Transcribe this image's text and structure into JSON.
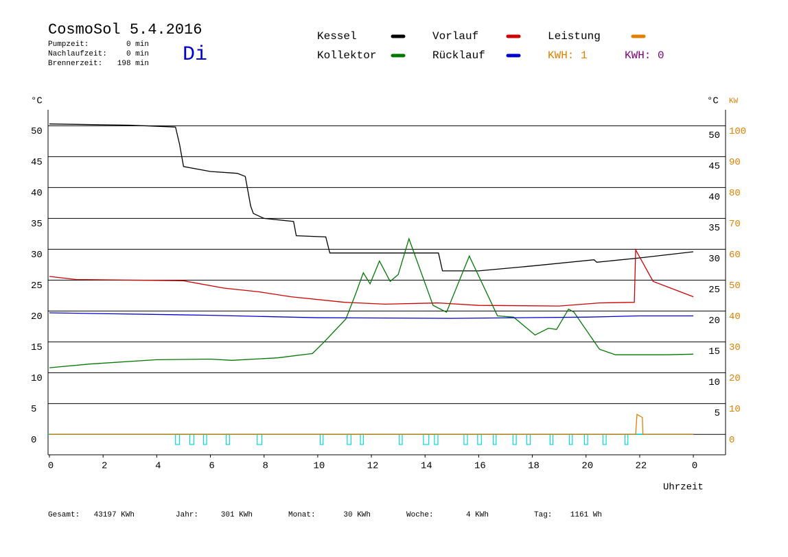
{
  "chart_data": {
    "type": "line",
    "title": "CosmoSol 5.4.2016",
    "day": "Di",
    "stats": [
      {
        "label": "Pumpzeit:",
        "value": "0 min"
      },
      {
        "label": "Nachlaufzeit:",
        "value": "0 min"
      },
      {
        "label": "Brennerzeit:",
        "value": "198 min"
      }
    ],
    "y_label": "°C",
    "y2_label_c": "°C",
    "y2_label": "KW",
    "x_label": "Uhrzeit",
    "xlim": [
      0,
      25.2
    ],
    "xticks": [
      0,
      2,
      4,
      6,
      8,
      10,
      12,
      14,
      16,
      18,
      20,
      22,
      {
        "value": 24,
        "label": "0"
      }
    ],
    "ylim": [
      -3.3,
      52.6
    ],
    "yticks": [
      0,
      5,
      10,
      15,
      20,
      25,
      30,
      35,
      40,
      45,
      50
    ],
    "yticks_right": [
      5,
      10,
      15,
      20,
      25,
      30,
      35,
      40,
      45,
      50
    ],
    "y2lim": [
      -6.6,
      105.2
    ],
    "y2ticks": [
      0,
      10,
      20,
      30,
      40,
      50,
      60,
      70,
      80,
      90,
      100
    ],
    "y2_color": "#e08000",
    "grid": true,
    "series": [
      {
        "name": "Kessel",
        "color": "#000000",
        "x": [
          0,
          3,
          4.7,
          4.85,
          5,
          6,
          7,
          7.3,
          7.5,
          7.6,
          8,
          9.1,
          9.2,
          10.3,
          10.45,
          14.5,
          14.65,
          16,
          18,
          20.3,
          20.4,
          22,
          24
        ],
        "values": [
          50.3,
          50.1,
          49.8,
          47,
          43.4,
          42.6,
          42.3,
          41.8,
          37,
          35.8,
          35,
          34.5,
          32.2,
          32,
          29.4,
          29.4,
          26.5,
          26.5,
          27.3,
          28.3,
          27.9,
          28.6,
          29.6
        ]
      },
      {
        "name": "Vorlauf",
        "color": "#cc0000",
        "x": [
          0,
          1,
          5,
          6.5,
          7.8,
          9,
          11,
          12.5,
          14.5,
          16,
          19,
          20.5,
          21.8,
          21.85,
          22.5,
          24
        ],
        "values": [
          25.6,
          25.1,
          24.9,
          23.7,
          23.1,
          22.3,
          21.4,
          21.1,
          21.3,
          20.9,
          20.8,
          21.3,
          21.4,
          29.9,
          24.8,
          22.3
        ]
      },
      {
        "name": "Leistung",
        "color": "#e08000",
        "axis": "y2",
        "x": [
          0,
          21.85,
          21.9,
          22.1,
          22.12,
          24
        ],
        "values": [
          0,
          0,
          6.5,
          5.5,
          0,
          0
        ]
      },
      {
        "name": "Kollektor",
        "color": "#007700",
        "x": [
          0,
          1.5,
          4,
          6,
          6.8,
          8.5,
          9.8,
          10.2,
          11.05,
          11.4,
          11.7,
          11.95,
          12.3,
          12.7,
          13.0,
          13.4,
          14.3,
          14.8,
          15.65,
          16.7,
          17.3,
          18.1,
          18.6,
          18.9,
          19.35,
          19.55,
          20.5,
          21.1,
          23,
          24
        ],
        "values": [
          10.8,
          11.4,
          12.1,
          12.2,
          12.0,
          12.4,
          13.1,
          14.8,
          18.7,
          22.6,
          26.2,
          24.4,
          28.1,
          24.8,
          25.9,
          31.7,
          20.9,
          19.8,
          28.9,
          19.2,
          19.0,
          16.1,
          17.2,
          17.0,
          20.3,
          19.8,
          13.8,
          12.9,
          12.9,
          13.0
        ]
      },
      {
        "name": "Rücklauf",
        "color": "#0000cc",
        "x": [
          0,
          6,
          10,
          15,
          20,
          22,
          24
        ],
        "values": [
          19.7,
          19.3,
          18.9,
          18.8,
          19.0,
          19.2,
          19.2
        ]
      }
    ],
    "kwh_labels": [
      {
        "label": "KWH: 1",
        "color": "#e08000"
      },
      {
        "label": "KWH: 0",
        "color": "#800080"
      }
    ],
    "pump": {
      "color": "#00d8e0",
      "on": [
        [
          4.7,
          4.85
        ],
        [
          5.23,
          5.38
        ],
        [
          5.74,
          5.86
        ],
        [
          6.59,
          6.71
        ],
        [
          7.74,
          7.92
        ],
        [
          10.09,
          10.2
        ],
        [
          11.1,
          11.24
        ],
        [
          11.59,
          11.7
        ],
        [
          13.04,
          13.15
        ],
        [
          13.94,
          14.14
        ],
        [
          14.35,
          14.48
        ],
        [
          15.45,
          15.58
        ],
        [
          15.96,
          16.1
        ],
        [
          16.54,
          16.65
        ],
        [
          17.28,
          17.4
        ],
        [
          17.79,
          17.92
        ],
        [
          18.66,
          18.77
        ],
        [
          19.38,
          19.49
        ],
        [
          19.94,
          20.06
        ],
        [
          20.63,
          20.75
        ],
        [
          21.45,
          21.56
        ]
      ]
    },
    "footer": [
      {
        "label": "Gesamt:",
        "value": "43197 KWh"
      },
      {
        "label": "Jahr:",
        "value": "301 KWh"
      },
      {
        "label": "Monat:",
        "value": "30 KWh"
      },
      {
        "label": "Woche:",
        "value": "4 KWh"
      },
      {
        "label": "Tag:",
        "value": "1161 Wh"
      }
    ]
  }
}
